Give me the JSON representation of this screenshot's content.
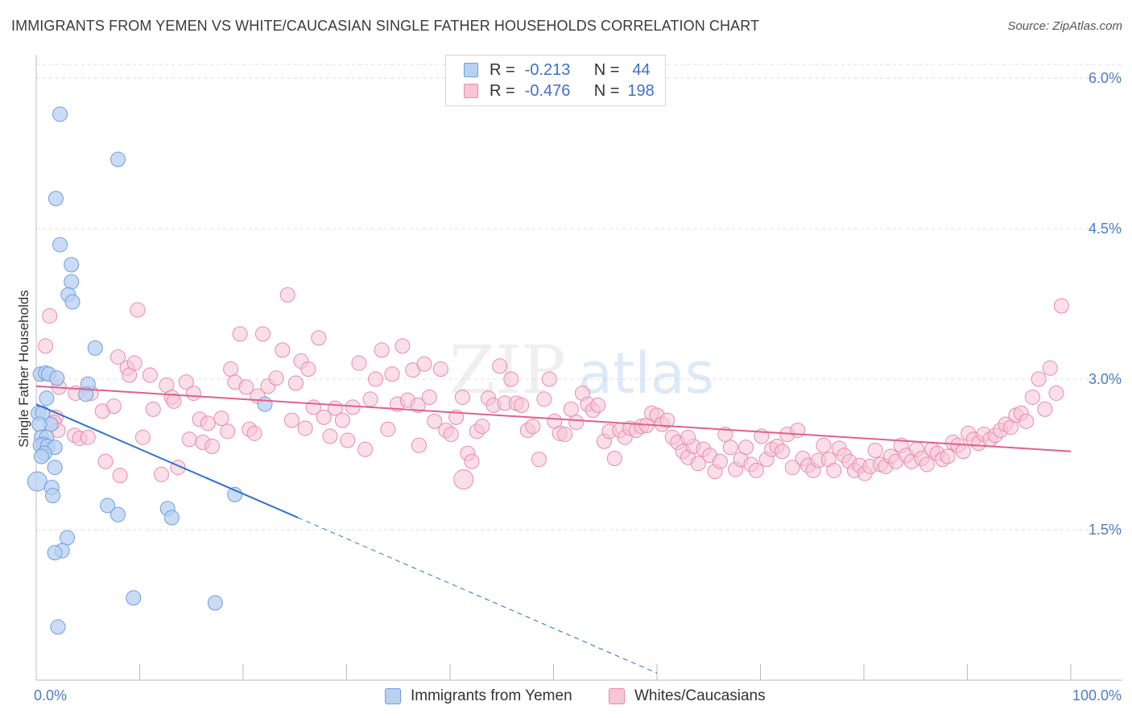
{
  "title": "IMMIGRANTS FROM YEMEN VS WHITE/CAUCASIAN SINGLE FATHER HOUSEHOLDS CORRELATION CHART",
  "source": "Source: ZipAtlas.com",
  "watermark": {
    "zip": "ZIP",
    "atlas": "atlas"
  },
  "legend": {
    "r_label": "R =",
    "n_label": "N =",
    "series1": {
      "r": "-0.213",
      "n": "44"
    },
    "series2": {
      "r": "-0.476",
      "n": "198"
    }
  },
  "bottom_legend": {
    "series1": "Immigrants from Yemen",
    "series2": "Whites/Caucasians"
  },
  "colors": {
    "blue_fill": "#b8d0f2",
    "blue_stroke": "#6e9de0",
    "blue_line": "#2f72d0",
    "pink_fill": "#f7c5d6",
    "pink_stroke": "#e88aaa",
    "pink_line": "#e0608d",
    "tick": "#4a7cc9",
    "grid": "#dddddd"
  },
  "chart_data": {
    "type": "scatter",
    "title": "IMMIGRANTS FROM YEMEN VS WHITE/CAUCASIAN SINGLE FATHER HOUSEHOLDS CORRELATION CHART",
    "xlabel": "",
    "ylabel": "Single Father Households",
    "xlim": [
      0,
      100
    ],
    "ylim": [
      0,
      6.2
    ],
    "x_tick_labels": {
      "left": "0.0%",
      "right": "100.0%"
    },
    "y_ticks": [
      {
        "value": 1.5,
        "label": "1.5%"
      },
      {
        "value": 3.0,
        "label": "3.0%"
      },
      {
        "value": 4.5,
        "label": "4.5%"
      },
      {
        "value": 6.0,
        "label": "6.0%"
      }
    ],
    "series": [
      {
        "name": "Immigrants from Yemen",
        "trend": {
          "x0": 0,
          "y0": 2.75,
          "x1": 25.3,
          "y1": 1.62,
          "dash_to_x": 60
        },
        "points": [
          [
            2.3,
            5.64
          ],
          [
            7.9,
            5.19
          ],
          [
            1.9,
            4.8
          ],
          [
            2.3,
            4.34
          ],
          [
            3.4,
            4.14
          ],
          [
            3.4,
            3.97
          ],
          [
            3.1,
            3.84
          ],
          [
            3.5,
            3.77
          ],
          [
            5.7,
            3.31
          ],
          [
            0.4,
            3.05
          ],
          [
            0.9,
            3.06
          ],
          [
            1.2,
            3.05
          ],
          [
            2.0,
            3.01
          ],
          [
            5.0,
            2.95
          ],
          [
            4.8,
            2.85
          ],
          [
            1.0,
            2.81
          ],
          [
            0.2,
            2.66
          ],
          [
            0.6,
            2.66
          ],
          [
            1.4,
            2.55
          ],
          [
            0.3,
            2.55
          ],
          [
            22.1,
            2.75
          ],
          [
            0.5,
            2.42
          ],
          [
            1.0,
            2.42
          ],
          [
            0.7,
            2.35
          ],
          [
            0.4,
            2.34
          ],
          [
            1.1,
            2.33
          ],
          [
            1.8,
            2.32
          ],
          [
            0.8,
            2.26
          ],
          [
            0.5,
            2.23
          ],
          [
            1.8,
            2.12
          ],
          [
            0.1,
            1.98
          ],
          [
            1.5,
            1.92
          ],
          [
            1.6,
            1.84
          ],
          [
            19.2,
            1.85
          ],
          [
            6.9,
            1.74
          ],
          [
            7.9,
            1.65
          ],
          [
            12.7,
            1.71
          ],
          [
            13.1,
            1.62
          ],
          [
            3.0,
            1.42
          ],
          [
            2.5,
            1.29
          ],
          [
            1.8,
            1.27
          ],
          [
            9.4,
            0.82
          ],
          [
            17.3,
            0.77
          ],
          [
            2.1,
            0.53
          ]
        ],
        "sizes": {
          "0": 9,
          "30": 12
        }
      },
      {
        "name": "Whites/Caucasians",
        "trend": {
          "x0": 0,
          "y0": 2.93,
          "x1": 100,
          "y1": 2.28
        },
        "points": [
          [
            1.3,
            3.63
          ],
          [
            0.9,
            3.33
          ],
          [
            2.2,
            2.92
          ],
          [
            3.8,
            2.86
          ],
          [
            1.9,
            2.62
          ],
          [
            5.3,
            2.86
          ],
          [
            6.4,
            2.68
          ],
          [
            3.7,
            2.44
          ],
          [
            4.2,
            2.41
          ],
          [
            7.5,
            2.73
          ],
          [
            7.9,
            3.22
          ],
          [
            8.8,
            3.11
          ],
          [
            9.0,
            3.04
          ],
          [
            9.5,
            3.16
          ],
          [
            9.8,
            3.69
          ],
          [
            10.3,
            2.42
          ],
          [
            11.0,
            3.04
          ],
          [
            11.3,
            2.7
          ],
          [
            12.1,
            2.05
          ],
          [
            12.6,
            2.94
          ],
          [
            13.1,
            2.82
          ],
          [
            13.3,
            2.78
          ],
          [
            13.7,
            2.12
          ],
          [
            14.5,
            2.97
          ],
          [
            14.8,
            2.4
          ],
          [
            15.2,
            2.86
          ],
          [
            15.8,
            2.6
          ],
          [
            16.1,
            2.37
          ],
          [
            16.6,
            2.56
          ],
          [
            17.0,
            2.33
          ],
          [
            17.9,
            2.61
          ],
          [
            18.8,
            3.1
          ],
          [
            19.2,
            2.97
          ],
          [
            19.7,
            3.45
          ],
          [
            20.3,
            2.92
          ],
          [
            20.6,
            2.5
          ],
          [
            21.1,
            2.46
          ],
          [
            21.4,
            2.83
          ],
          [
            21.9,
            3.45
          ],
          [
            22.4,
            2.93
          ],
          [
            23.2,
            3.01
          ],
          [
            23.8,
            3.29
          ],
          [
            24.3,
            3.84
          ],
          [
            24.7,
            2.59
          ],
          [
            25.1,
            2.96
          ],
          [
            25.6,
            3.18
          ],
          [
            26.3,
            3.1
          ],
          [
            26.8,
            2.72
          ],
          [
            27.3,
            3.41
          ],
          [
            27.8,
            2.62
          ],
          [
            28.4,
            2.43
          ],
          [
            28.9,
            2.71
          ],
          [
            29.6,
            2.59
          ],
          [
            30.1,
            2.39
          ],
          [
            30.6,
            2.72
          ],
          [
            31.2,
            3.16
          ],
          [
            31.8,
            2.3
          ],
          [
            32.3,
            2.8
          ],
          [
            32.8,
            3.0
          ],
          [
            33.4,
            3.29
          ],
          [
            34.0,
            2.5
          ],
          [
            34.4,
            3.05
          ],
          [
            34.9,
            2.75
          ],
          [
            35.4,
            3.33
          ],
          [
            35.9,
            2.79
          ],
          [
            36.4,
            3.09
          ],
          [
            36.9,
            2.74
          ],
          [
            37.5,
            3.15
          ],
          [
            38.0,
            2.82
          ],
          [
            38.5,
            2.58
          ],
          [
            39.1,
            3.1
          ],
          [
            39.6,
            2.49
          ],
          [
            40.1,
            2.45
          ],
          [
            40.6,
            2.62
          ],
          [
            41.2,
            2.82
          ],
          [
            41.7,
            2.26
          ],
          [
            42.1,
            2.18
          ],
          [
            42.6,
            2.48
          ],
          [
            43.1,
            2.53
          ],
          [
            43.7,
            2.81
          ],
          [
            44.2,
            2.74
          ],
          [
            44.8,
            3.13
          ],
          [
            45.3,
            2.76
          ],
          [
            45.9,
            3.0
          ],
          [
            46.4,
            2.76
          ],
          [
            46.9,
            2.74
          ],
          [
            47.5,
            2.49
          ],
          [
            48.0,
            2.53
          ],
          [
            48.6,
            2.2
          ],
          [
            49.1,
            2.8
          ],
          [
            49.6,
            3.0
          ],
          [
            50.1,
            2.58
          ],
          [
            50.6,
            2.46
          ],
          [
            51.1,
            2.45
          ],
          [
            51.7,
            2.7
          ],
          [
            52.2,
            2.57
          ],
          [
            52.8,
            2.86
          ],
          [
            53.3,
            2.75
          ],
          [
            53.8,
            2.69
          ],
          [
            54.3,
            2.74
          ],
          [
            54.9,
            2.38
          ],
          [
            55.4,
            2.48
          ],
          [
            55.9,
            2.21
          ],
          [
            56.4,
            2.49
          ],
          [
            56.9,
            2.42
          ],
          [
            57.4,
            2.51
          ],
          [
            58.0,
            2.49
          ],
          [
            58.5,
            2.53
          ],
          [
            59.0,
            2.54
          ],
          [
            59.5,
            2.66
          ],
          [
            60.0,
            2.64
          ],
          [
            60.5,
            2.55
          ],
          [
            61.0,
            2.59
          ],
          [
            61.5,
            2.42
          ],
          [
            62.0,
            2.37
          ],
          [
            62.5,
            2.28
          ],
          [
            63.0,
            2.22
          ],
          [
            63.5,
            2.33
          ],
          [
            64.0,
            2.16
          ],
          [
            64.5,
            2.3
          ],
          [
            65.1,
            2.24
          ],
          [
            65.6,
            2.08
          ],
          [
            66.1,
            2.18
          ],
          [
            66.6,
            2.45
          ],
          [
            67.1,
            2.32
          ],
          [
            67.6,
            2.1
          ],
          [
            68.1,
            2.2
          ],
          [
            68.6,
            2.32
          ],
          [
            69.1,
            2.15
          ],
          [
            69.6,
            2.09
          ],
          [
            70.1,
            2.43
          ],
          [
            70.6,
            2.2
          ],
          [
            71.1,
            2.3
          ],
          [
            71.6,
            2.33
          ],
          [
            72.1,
            2.28
          ],
          [
            72.6,
            2.45
          ],
          [
            73.1,
            2.12
          ],
          [
            73.6,
            2.49
          ],
          [
            74.1,
            2.21
          ],
          [
            74.6,
            2.14
          ],
          [
            75.1,
            2.09
          ],
          [
            75.6,
            2.19
          ],
          [
            76.1,
            2.34
          ],
          [
            76.6,
            2.2
          ],
          [
            77.1,
            2.09
          ],
          [
            77.6,
            2.31
          ],
          [
            78.1,
            2.24
          ],
          [
            78.6,
            2.18
          ],
          [
            79.1,
            2.09
          ],
          [
            79.6,
            2.14
          ],
          [
            80.1,
            2.06
          ],
          [
            80.6,
            2.13
          ],
          [
            81.1,
            2.29
          ],
          [
            81.6,
            2.15
          ],
          [
            82.1,
            2.13
          ],
          [
            82.6,
            2.23
          ],
          [
            83.1,
            2.18
          ],
          [
            83.6,
            2.34
          ],
          [
            84.1,
            2.24
          ],
          [
            84.6,
            2.18
          ],
          [
            85.1,
            2.3
          ],
          [
            85.6,
            2.21
          ],
          [
            86.1,
            2.15
          ],
          [
            86.6,
            2.3
          ],
          [
            87.1,
            2.26
          ],
          [
            87.6,
            2.2
          ],
          [
            88.1,
            2.23
          ],
          [
            88.6,
            2.37
          ],
          [
            89.1,
            2.34
          ],
          [
            89.6,
            2.28
          ],
          [
            90.1,
            2.46
          ],
          [
            90.6,
            2.4
          ],
          [
            91.1,
            2.36
          ],
          [
            91.6,
            2.45
          ],
          [
            92.2,
            2.4
          ],
          [
            92.7,
            2.44
          ],
          [
            93.2,
            2.49
          ],
          [
            93.7,
            2.55
          ],
          [
            94.2,
            2.52
          ],
          [
            94.7,
            2.64
          ],
          [
            95.2,
            2.66
          ],
          [
            95.7,
            2.58
          ],
          [
            96.3,
            2.82
          ],
          [
            96.9,
            3.0
          ],
          [
            97.5,
            2.7
          ],
          [
            98.0,
            3.11
          ],
          [
            98.6,
            2.86
          ],
          [
            99.1,
            3.73
          ],
          [
            41.3,
            2.0
          ],
          [
            1.7,
            2.57
          ],
          [
            2.1,
            2.49
          ],
          [
            5.0,
            2.42
          ],
          [
            6.7,
            2.18
          ],
          [
            8.1,
            2.04
          ],
          [
            18.5,
            2.48
          ],
          [
            26.0,
            2.51
          ],
          [
            37.0,
            2.34
          ],
          [
            63.0,
            2.42
          ]
        ],
        "sizes": {
          "188": 12
        }
      }
    ]
  }
}
